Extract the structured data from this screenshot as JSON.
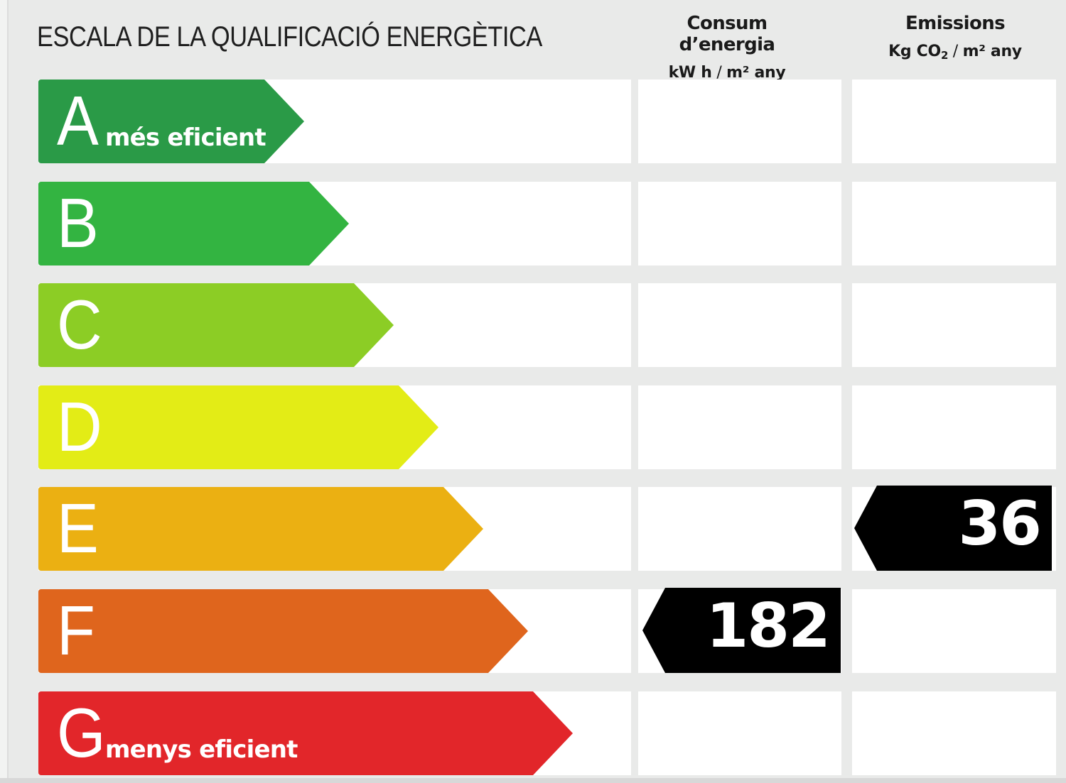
{
  "title": "ESCALA DE LA QUALIFICACIÓ ENERGÈTICA",
  "columns": {
    "energy": {
      "heading": "Consum d’energia",
      "unit_a": "kW h",
      "unit_sep": " / ",
      "unit_b": "m² any"
    },
    "emissions": {
      "heading": "Emissions",
      "unit_a": "Kg CO",
      "unit_sub": "2",
      "unit_sep": " / ",
      "unit_b": "m² any"
    }
  },
  "classes": [
    {
      "letter": "A",
      "caption": "més eficient",
      "color": "#2a9a47"
    },
    {
      "letter": "B",
      "caption": "",
      "color": "#33b441"
    },
    {
      "letter": "C",
      "caption": "",
      "color": "#8ccd25"
    },
    {
      "letter": "D",
      "caption": "",
      "color": "#e3ec16"
    },
    {
      "letter": "E",
      "caption": "",
      "color": "#ebb012"
    },
    {
      "letter": "F",
      "caption": "",
      "color": "#df651d"
    },
    {
      "letter": "G",
      "caption": "menys eficient",
      "color": "#e2262a"
    }
  ],
  "ratings": {
    "energy": {
      "class": "F",
      "value": "182"
    },
    "emissions": {
      "class": "E",
      "value": "36"
    }
  },
  "indicator_color": "#000000"
}
